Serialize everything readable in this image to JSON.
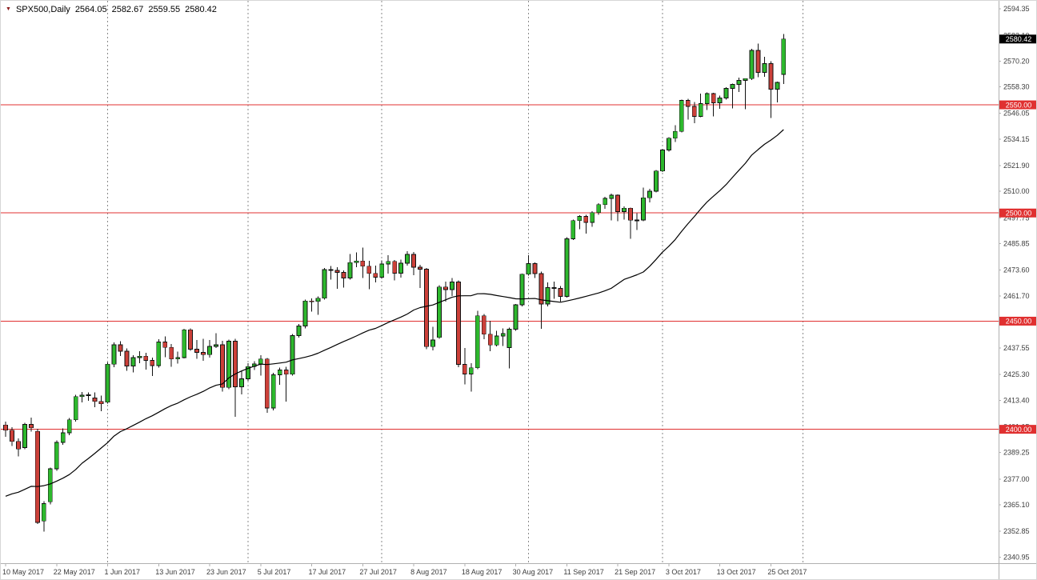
{
  "header": {
    "triangle_glyph": "▼",
    "symbol_period": "SPX500,Daily",
    "open": "2564.05",
    "high": "2582.67",
    "low": "2559.55",
    "close": "2580.42"
  },
  "colors": {
    "background": "#ffffff",
    "up_candle": "#2db82d",
    "down_candle": "#cc4039",
    "candle_border": "#111111",
    "wick": "#111111",
    "ma_line": "#000000",
    "level_line": "#e03030",
    "level_badge_bg": "#e03030",
    "level_badge_text": "#ffffff",
    "current_badge_bg": "#000000",
    "current_badge_text": "#ffffff",
    "grid_dash": "#8a8a8a",
    "axis_text": "#3c3c3c",
    "axis_line": "#b0b0b0",
    "header_triangle": "#8b1a1a"
  },
  "chart_data": {
    "type": "candlestick",
    "title": "SPX500,Daily",
    "timeframe": "Daily",
    "symbol": "SPX500",
    "ylim": [
      2338.1,
      2598.1
    ],
    "grid": "vertical-dashed-month-lines",
    "legend_position": "none",
    "y_axis_ticks": [
      "2594.35",
      "2582.10",
      "2570.20",
      "2558.30",
      "2546.05",
      "2534.15",
      "2521.90",
      "2510.00",
      "2497.75",
      "2485.85",
      "2473.60",
      "2461.70",
      "2449.45",
      "2437.55",
      "2425.30",
      "2413.40",
      "2401.15",
      "2389.25",
      "2377.00",
      "2365.10",
      "2352.85",
      "2340.95"
    ],
    "x_axis_ticks": [
      {
        "text": "10 May 2017",
        "bar_index": 0
      },
      {
        "text": "22 May 2017",
        "bar_index": 8
      },
      {
        "text": "1 Jun 2017",
        "bar_index": 16
      },
      {
        "text": "13 Jun 2017",
        "bar_index": 24
      },
      {
        "text": "23 Jun 2017",
        "bar_index": 32
      },
      {
        "text": "5 Jul 2017",
        "bar_index": 40
      },
      {
        "text": "17 Jul 2017",
        "bar_index": 48
      },
      {
        "text": "27 Jul 2017",
        "bar_index": 56
      },
      {
        "text": "8 Aug 2017",
        "bar_index": 64
      },
      {
        "text": "18 Aug 2017",
        "bar_index": 72
      },
      {
        "text": "30 Aug 2017",
        "bar_index": 80
      },
      {
        "text": "11 Sep 2017",
        "bar_index": 88
      },
      {
        "text": "21 Sep 2017",
        "bar_index": 96
      },
      {
        "text": "3 Oct 2017",
        "bar_index": 104
      },
      {
        "text": "13 Oct 2017",
        "bar_index": 112
      },
      {
        "text": "25 Oct 2017",
        "bar_index": 120
      }
    ],
    "month_grid_bar_indices": [
      16,
      38,
      59,
      82,
      103,
      125
    ],
    "horizontal_levels": [
      {
        "price": 2550,
        "label": "2550.00"
      },
      {
        "price": 2500,
        "label": "2500.00"
      },
      {
        "price": 2450,
        "label": "2450.00"
      },
      {
        "price": 2400,
        "label": "2400.00"
      }
    ],
    "current_price": {
      "price": 2580.42,
      "label": "2580.42"
    },
    "last_bar_ohlc": {
      "open": 2564.05,
      "high": 2582.67,
      "low": 2559.55,
      "close": 2580.42
    },
    "moving_average": {
      "type": "sma",
      "period": 30,
      "color": "#000000",
      "prehistory_closes": [
        2358.6,
        2361.1,
        2368.1,
        2362.7,
        2358.8,
        2360.2,
        2353.0,
        2357.5,
        2355.5,
        2357.2,
        2353.8,
        2344.9,
        2329.0,
        2349.0,
        2342.2,
        2338.2,
        2355.8,
        2348.7,
        2374.2,
        2388.6,
        2387.5,
        2388.8,
        2384.2,
        2388.3,
        2391.2,
        2388.1,
        2389.5,
        2399.3,
        2399.4,
        2396.9
      ]
    },
    "dates": [
      "2017-05-10",
      "2017-05-11",
      "2017-05-12",
      "2017-05-15",
      "2017-05-16",
      "2017-05-17",
      "2017-05-18",
      "2017-05-19",
      "2017-05-22",
      "2017-05-23",
      "2017-05-24",
      "2017-05-25",
      "2017-05-26",
      "2017-05-29",
      "2017-05-30",
      "2017-05-31",
      "2017-06-01",
      "2017-06-02",
      "2017-06-05",
      "2017-06-06",
      "2017-06-07",
      "2017-06-08",
      "2017-06-09",
      "2017-06-12",
      "2017-06-13",
      "2017-06-14",
      "2017-06-15",
      "2017-06-16",
      "2017-06-19",
      "2017-06-20",
      "2017-06-21",
      "2017-06-22",
      "2017-06-23",
      "2017-06-26",
      "2017-06-27",
      "2017-06-28",
      "2017-06-29",
      "2017-06-30",
      "2017-07-03",
      "2017-07-04",
      "2017-07-05",
      "2017-07-06",
      "2017-07-07",
      "2017-07-10",
      "2017-07-11",
      "2017-07-12",
      "2017-07-13",
      "2017-07-14",
      "2017-07-17",
      "2017-07-18",
      "2017-07-19",
      "2017-07-20",
      "2017-07-21",
      "2017-07-24",
      "2017-07-25",
      "2017-07-26",
      "2017-07-27",
      "2017-07-28",
      "2017-07-31",
      "2017-08-01",
      "2017-08-02",
      "2017-08-03",
      "2017-08-04",
      "2017-08-07",
      "2017-08-08",
      "2017-08-09",
      "2017-08-10",
      "2017-08-11",
      "2017-08-14",
      "2017-08-15",
      "2017-08-16",
      "2017-08-17",
      "2017-08-18",
      "2017-08-21",
      "2017-08-22",
      "2017-08-23",
      "2017-08-24",
      "2017-08-25",
      "2017-08-28",
      "2017-08-29",
      "2017-08-30",
      "2017-08-31",
      "2017-09-01",
      "2017-09-04",
      "2017-09-05",
      "2017-09-06",
      "2017-09-07",
      "2017-09-08",
      "2017-09-11",
      "2017-09-12",
      "2017-09-13",
      "2017-09-14",
      "2017-09-15",
      "2017-09-18",
      "2017-09-19",
      "2017-09-20",
      "2017-09-21",
      "2017-09-22",
      "2017-09-25",
      "2017-09-26",
      "2017-09-27",
      "2017-09-28",
      "2017-09-29",
      "2017-10-02",
      "2017-10-03",
      "2017-10-04",
      "2017-10-05",
      "2017-10-06",
      "2017-10-09",
      "2017-10-10",
      "2017-10-11",
      "2017-10-12",
      "2017-10-13",
      "2017-10-16",
      "2017-10-17",
      "2017-10-18",
      "2017-10-19",
      "2017-10-20",
      "2017-10-23",
      "2017-10-24",
      "2017-10-25",
      "2017-10-26",
      "2017-10-27"
    ],
    "candles": [
      [
        2402.0,
        2403.5,
        2396.5,
        2399.6
      ],
      [
        2399.6,
        2401.0,
        2392.2,
        2394.4
      ],
      [
        2394.4,
        2395.8,
        2387.5,
        2390.9
      ],
      [
        2391.5,
        2403.0,
        2390.8,
        2402.3
      ],
      [
        2402.3,
        2405.4,
        2398.9,
        2400.7
      ],
      [
        2399.0,
        2400.2,
        2356.2,
        2357.0
      ],
      [
        2357.6,
        2366.8,
        2352.7,
        2365.7
      ],
      [
        2366.5,
        2382.3,
        2365.3,
        2381.7
      ],
      [
        2381.7,
        2394.8,
        2380.9,
        2394.0
      ],
      [
        2394.0,
        2400.5,
        2392.8,
        2398.4
      ],
      [
        2398.4,
        2405.2,
        2397.3,
        2404.4
      ],
      [
        2404.4,
        2416.0,
        2403.6,
        2415.1
      ],
      [
        2415.1,
        2417.3,
        2412.4,
        2415.8
      ],
      [
        2415.8,
        2417.0,
        2413.2,
        2415.9
      ],
      [
        2414.5,
        2417.0,
        2410.3,
        2412.9
      ],
      [
        2412.9,
        2415.6,
        2408.4,
        2411.8
      ],
      [
        2412.5,
        2430.9,
        2411.9,
        2430.1
      ],
      [
        2430.1,
        2440.2,
        2428.7,
        2439.1
      ],
      [
        2439.1,
        2440.8,
        2433.9,
        2436.1
      ],
      [
        2436.1,
        2437.4,
        2427.0,
        2429.3
      ],
      [
        2429.3,
        2434.3,
        2426.3,
        2433.1
      ],
      [
        2433.1,
        2436.1,
        2430.6,
        2433.8
      ],
      [
        2433.8,
        2435.3,
        2427.6,
        2431.8
      ],
      [
        2431.8,
        2433.2,
        2424.7,
        2429.4
      ],
      [
        2429.4,
        2441.6,
        2428.6,
        2440.4
      ],
      [
        2440.4,
        2443.0,
        2433.3,
        2437.9
      ],
      [
        2437.9,
        2439.5,
        2428.9,
        2432.5
      ],
      [
        2432.5,
        2435.9,
        2430.4,
        2433.2
      ],
      [
        2433.2,
        2446.4,
        2432.8,
        2446.0
      ],
      [
        2446.0,
        2446.6,
        2436.3,
        2437.0
      ],
      [
        2437.0,
        2441.2,
        2432.6,
        2435.6
      ],
      [
        2435.6,
        2441.9,
        2431.6,
        2434.5
      ],
      [
        2434.5,
        2441.3,
        2433.1,
        2438.3
      ],
      [
        2438.3,
        2444.5,
        2437.5,
        2439.1
      ],
      [
        2439.1,
        2441.0,
        2417.5,
        2419.4
      ],
      [
        2419.4,
        2441.5,
        2418.5,
        2440.7
      ],
      [
        2440.7,
        2441.9,
        2405.7,
        2419.7
      ],
      [
        2419.7,
        2427.0,
        2416.1,
        2423.4
      ],
      [
        2423.4,
        2430.6,
        2422.4,
        2429.0
      ],
      [
        2429.0,
        2431.5,
        2427.5,
        2430.2
      ],
      [
        2430.2,
        2434.2,
        2424.8,
        2432.5
      ],
      [
        2432.5,
        2433.0,
        2407.7,
        2409.8
      ],
      [
        2409.8,
        2426.2,
        2408.8,
        2425.2
      ],
      [
        2425.2,
        2428.5,
        2420.6,
        2427.4
      ],
      [
        2427.4,
        2428.9,
        2412.9,
        2425.5
      ],
      [
        2425.5,
        2444.0,
        2424.9,
        2443.3
      ],
      [
        2443.3,
        2448.6,
        2442.4,
        2447.8
      ],
      [
        2447.8,
        2460.0,
        2446.7,
        2459.3
      ],
      [
        2459.3,
        2460.5,
        2454.5,
        2459.1
      ],
      [
        2459.1,
        2461.4,
        2452.9,
        2460.6
      ],
      [
        2460.6,
        2474.5,
        2459.9,
        2473.8
      ],
      [
        2473.8,
        2475.5,
        2469.2,
        2473.5
      ],
      [
        2473.5,
        2474.9,
        2465.0,
        2472.5
      ],
      [
        2472.5,
        2473.4,
        2465.5,
        2469.9
      ],
      [
        2469.9,
        2481.0,
        2469.3,
        2477.1
      ],
      [
        2477.1,
        2481.8,
        2474.9,
        2477.8
      ],
      [
        2477.8,
        2484.0,
        2470.0,
        2475.4
      ],
      [
        2475.4,
        2477.9,
        2464.8,
        2472.1
      ],
      [
        2472.1,
        2475.7,
        2468.0,
        2470.3
      ],
      [
        2470.3,
        2478.1,
        2469.5,
        2476.4
      ],
      [
        2476.4,
        2480.4,
        2472.0,
        2477.6
      ],
      [
        2477.6,
        2478.3,
        2468.9,
        2472.2
      ],
      [
        2472.2,
        2478.4,
        2470.1,
        2476.8
      ],
      [
        2476.8,
        2482.3,
        2475.6,
        2480.9
      ],
      [
        2480.9,
        2482.0,
        2471.2,
        2474.9
      ],
      [
        2474.9,
        2476.1,
        2465.3,
        2474.0
      ],
      [
        2474.0,
        2474.5,
        2437.0,
        2438.2
      ],
      [
        2438.2,
        2447.3,
        2436.4,
        2441.3
      ],
      [
        2442.5,
        2466.6,
        2441.9,
        2465.8
      ],
      [
        2465.8,
        2468.3,
        2459.0,
        2464.6
      ],
      [
        2464.6,
        2469.9,
        2461.6,
        2468.1
      ],
      [
        2468.1,
        2468.8,
        2428.7,
        2430.0
      ],
      [
        2430.0,
        2437.6,
        2420.7,
        2425.6
      ],
      [
        2425.6,
        2430.6,
        2417.4,
        2428.4
      ],
      [
        2428.4,
        2454.8,
        2427.8,
        2452.5
      ],
      [
        2452.5,
        2453.3,
        2441.6,
        2444.0
      ],
      [
        2444.0,
        2450.1,
        2436.1,
        2439.0
      ],
      [
        2439.0,
        2445.6,
        2438.4,
        2443.1
      ],
      [
        2443.1,
        2446.7,
        2438.6,
        2444.2
      ],
      [
        2437.8,
        2447.1,
        2428.2,
        2446.3
      ],
      [
        2446.3,
        2458.0,
        2445.5,
        2457.6
      ],
      [
        2457.6,
        2472.0,
        2456.9,
        2471.7
      ],
      [
        2471.7,
        2480.4,
        2471.1,
        2476.6
      ],
      [
        2476.6,
        2477.2,
        2469.9,
        2472.0
      ],
      [
        2472.0,
        2473.0,
        2446.5,
        2457.9
      ],
      [
        2457.9,
        2467.9,
        2456.8,
        2465.5
      ],
      [
        2465.5,
        2468.2,
        2460.4,
        2465.1
      ],
      [
        2465.1,
        2466.2,
        2459.0,
        2461.4
      ],
      [
        2461.4,
        2488.9,
        2460.8,
        2488.1
      ],
      [
        2488.1,
        2497.0,
        2487.5,
        2496.5
      ],
      [
        2496.5,
        2498.9,
        2492.6,
        2498.4
      ],
      [
        2498.4,
        2499.1,
        2490.5,
        2495.6
      ],
      [
        2495.6,
        2500.8,
        2493.7,
        2500.2
      ],
      [
        2500.2,
        2504.5,
        2499.1,
        2503.9
      ],
      [
        2503.9,
        2507.4,
        2501.9,
        2506.7
      ],
      [
        2506.7,
        2509.0,
        2496.5,
        2508.2
      ],
      [
        2508.2,
        2508.6,
        2496.2,
        2500.6
      ],
      [
        2500.6,
        2503.0,
        2497.0,
        2502.2
      ],
      [
        2502.2,
        2502.5,
        2488.0,
        2496.7
      ],
      [
        2496.7,
        2499.9,
        2492.2,
        2496.8
      ],
      [
        2496.8,
        2511.8,
        2496.2,
        2507.0
      ],
      [
        2507.0,
        2511.2,
        2504.9,
        2510.1
      ],
      [
        2510.1,
        2519.9,
        2509.5,
        2519.4
      ],
      [
        2519.4,
        2529.6,
        2518.9,
        2529.1
      ],
      [
        2529.1,
        2535.1,
        2528.4,
        2534.6
      ],
      [
        2534.6,
        2540.5,
        2532.9,
        2537.7
      ],
      [
        2537.7,
        2552.5,
        2537.2,
        2552.1
      ],
      [
        2552.1,
        2552.8,
        2543.2,
        2549.3
      ],
      [
        2549.3,
        2551.3,
        2541.6,
        2544.7
      ],
      [
        2544.7,
        2555.2,
        2544.2,
        2550.6
      ],
      [
        2550.6,
        2555.7,
        2547.7,
        2555.2
      ],
      [
        2555.2,
        2555.6,
        2544.6,
        2550.9
      ],
      [
        2550.9,
        2554.2,
        2548.1,
        2553.2
      ],
      [
        2553.2,
        2558.1,
        2552.4,
        2557.6
      ],
      [
        2557.6,
        2559.8,
        2548.4,
        2559.4
      ],
      [
        2559.4,
        2562.6,
        2555.9,
        2561.3
      ],
      [
        2561.3,
        2562.3,
        2547.9,
        2562.1
      ],
      [
        2562.1,
        2576.0,
        2561.5,
        2575.2
      ],
      [
        2575.2,
        2578.3,
        2562.7,
        2565.0
      ],
      [
        2565.0,
        2572.2,
        2563.0,
        2569.1
      ],
      [
        2569.1,
        2570.2,
        2544.0,
        2557.2
      ],
      [
        2557.2,
        2560.7,
        2551.1,
        2560.4
      ],
      [
        2564.05,
        2582.67,
        2559.55,
        2580.42
      ]
    ]
  }
}
